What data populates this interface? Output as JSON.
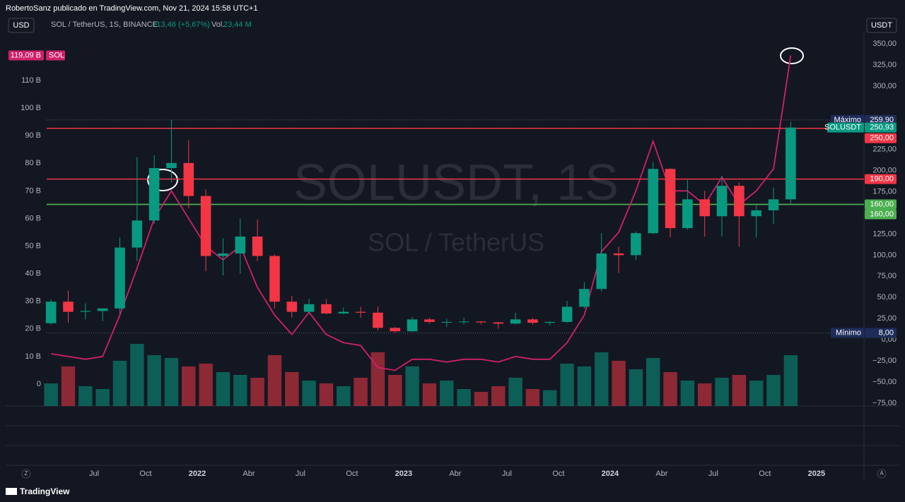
{
  "header": {
    "attribution": "RobertoSanz publicado en TradingView.com, Nov 21, 2024 15:58 UTC+1",
    "currency": "USD",
    "symbol": "SOL / TetherUS, 1S, BINANCE",
    "change": "+13,46 (+5,67%)",
    "volume_label": "Vol.",
    "volume_value": "23,44 M",
    "axis_currency": "USDT"
  },
  "watermark": {
    "symbol": "SOLUSDT, 1S",
    "name": "SOL / TetherUS"
  },
  "footer": {
    "zoom": "Z",
    "auto": "A",
    "brand": "TradingView"
  },
  "chart_data": {
    "type": "candlestick",
    "x": [
      "2021-04",
      "2021-05",
      "2021-06",
      "2021-07",
      "2021-08",
      "2021-09",
      "2021-10",
      "2021-11",
      "2021-12",
      "2022-01",
      "2022-02",
      "2022-03",
      "2022-04",
      "2022-05",
      "2022-06",
      "2022-07",
      "2022-08",
      "2022-09",
      "2022-10",
      "2022-11",
      "2022-12",
      "2023-01",
      "2023-02",
      "2023-03",
      "2023-04",
      "2023-05",
      "2023-06",
      "2023-07",
      "2023-08",
      "2023-09",
      "2023-10",
      "2023-11",
      "2023-12",
      "2024-01",
      "2024-02",
      "2024-03",
      "2024-04",
      "2024-05",
      "2024-06",
      "2024-07",
      "2024-08",
      "2024-09",
      "2024-10",
      "2024-11"
    ],
    "open": [
      19.5,
      45,
      33,
      34,
      37,
      109,
      141,
      203,
      209,
      170,
      99,
      102,
      122,
      99,
      45,
      33,
      42,
      31,
      33,
      32,
      14,
      10,
      24,
      21,
      21,
      21.5,
      20.5,
      19,
      24,
      20,
      21,
      39,
      60,
      102,
      100,
      126,
      202,
      132,
      166,
      146,
      182,
      146,
      153,
      166
    ],
    "high": [
      48,
      58,
      43,
      37,
      121,
      216,
      218,
      259.9,
      236,
      178,
      120,
      143,
      142,
      101,
      52,
      48,
      48,
      38,
      39,
      39,
      15,
      27,
      26,
      25,
      26,
      22,
      21,
      32,
      26,
      22,
      46,
      68,
      126,
      110,
      128,
      210,
      203,
      189,
      176,
      194,
      186,
      161,
      180,
      258
    ],
    "low": [
      18,
      20,
      24,
      22,
      31,
      93,
      137,
      186,
      155,
      81,
      76,
      78,
      93,
      37,
      26,
      31,
      30,
      30,
      26,
      11,
      8,
      9,
      19,
      15,
      18,
      18,
      13,
      18,
      18,
      17,
      20,
      37,
      57,
      79,
      94,
      125,
      121,
      130,
      122,
      122,
      110,
      121,
      137,
      161
    ],
    "close": [
      45,
      33,
      34,
      37,
      109,
      141,
      203,
      209,
      170,
      99,
      102,
      122,
      99,
      45,
      33,
      42,
      31,
      33,
      32,
      14,
      10,
      24,
      21,
      21,
      21.5,
      20.5,
      19,
      24,
      20,
      21,
      39,
      60,
      102,
      100,
      126,
      202,
      132,
      166,
      146,
      182,
      146,
      153,
      166,
      250.93
    ],
    "volume": [
      40,
      70,
      35,
      30,
      80,
      110,
      90,
      85,
      70,
      75,
      60,
      55,
      50,
      90,
      60,
      45,
      40,
      35,
      50,
      95,
      55,
      70,
      40,
      45,
      30,
      25,
      35,
      50,
      30,
      28,
      75,
      70,
      95,
      80,
      65,
      85,
      60,
      45,
      40,
      50,
      55,
      45,
      55,
      90
    ],
    "up_color": "#089981",
    "down_color": "#f23645",
    "ylim": [
      -78.4,
      364.2
    ],
    "yticks": [
      {
        "value": 350,
        "label": "350,00"
      },
      {
        "value": 325,
        "label": "325,00"
      },
      {
        "value": 300,
        "label": "300,00"
      },
      {
        "value": 225,
        "label": "225,00"
      },
      {
        "value": 200,
        "label": "200,00"
      },
      {
        "value": 175,
        "label": "175,00"
      },
      {
        "value": 125,
        "label": "125,00"
      },
      {
        "value": 100,
        "label": "100,00"
      },
      {
        "value": 75,
        "label": "75,00"
      },
      {
        "value": 50,
        "label": "50,00"
      },
      {
        "value": 25,
        "label": "25,00"
      },
      {
        "value": 0,
        "label": "0,00"
      },
      {
        "value": -25,
        "label": "−25,00"
      },
      {
        "value": -50,
        "label": "−50,00"
      },
      {
        "value": -75,
        "label": "−75,00"
      }
    ],
    "y2lim": [
      -7.93,
      127.65
    ],
    "y2ticks": [
      {
        "value": 110,
        "label": "110 B"
      },
      {
        "value": 100,
        "label": "100 B"
      },
      {
        "value": 90,
        "label": "90 B"
      },
      {
        "value": 80,
        "label": "80 B"
      },
      {
        "value": 70,
        "label": "70 B"
      },
      {
        "value": 60,
        "label": "60 B"
      },
      {
        "value": 50,
        "label": "50 B"
      },
      {
        "value": 40,
        "label": "40 B"
      },
      {
        "value": 30,
        "label": "30 B"
      },
      {
        "value": 20,
        "label": "20 B"
      },
      {
        "value": 10,
        "label": "10 B"
      },
      0
    ],
    "xticks": [
      {
        "value": "2021-07",
        "label": "Jul"
      },
      {
        "value": "2021-10",
        "label": "Oct"
      },
      {
        "value": "2022-01",
        "label": "2022"
      },
      {
        "value": "2022-04",
        "label": "Abr"
      },
      {
        "value": "2022-07",
        "label": "Jul"
      },
      {
        "value": "2022-10",
        "label": "Oct"
      },
      {
        "value": "2023-01",
        "label": "2023"
      },
      {
        "value": "2023-04",
        "label": "Abr"
      },
      {
        "value": "2023-07",
        "label": "Jul"
      },
      {
        "value": "2023-10",
        "label": "Oct"
      },
      {
        "value": "2024-01",
        "label": "2024"
      },
      {
        "value": "2024-04",
        "label": "Abr"
      },
      {
        "value": "2024-07",
        "label": "Jul"
      },
      {
        "value": "2024-10",
        "label": "Oct"
      },
      {
        "value": "2025-01",
        "label": "2025"
      }
    ],
    "grid": false,
    "overlay": {
      "name": "SOL",
      "color": "#d0206a",
      "axis": "y2",
      "last_label": "119,09 B",
      "values": [
        11,
        10,
        9,
        10,
        25,
        42,
        60,
        70,
        60,
        50,
        45,
        50,
        35,
        25,
        18,
        26,
        18,
        15,
        14,
        6,
        5,
        9,
        9,
        8,
        9,
        9,
        8,
        10,
        9,
        9,
        15,
        25,
        48,
        55,
        70,
        88,
        70,
        70,
        65,
        75,
        65,
        70,
        78,
        119.09
      ]
    },
    "hlines": [
      {
        "value": 250,
        "label": "250,00",
        "color": "#f23645"
      },
      {
        "value": 190,
        "label": "190,00",
        "color": "#f23645"
      },
      {
        "value": 160,
        "label": "160,00",
        "color": "#4caf50"
      },
      {
        "value": 160,
        "label": "160,00",
        "color": "#4caf50"
      }
    ],
    "markers": [
      {
        "name": "Máximo",
        "value": 259.9,
        "label": "259,90"
      },
      {
        "name": "Mínimo",
        "value": 8,
        "label": "8,00"
      }
    ],
    "last_price": {
      "name": "SOLUSDT",
      "label": "250,93"
    }
  }
}
